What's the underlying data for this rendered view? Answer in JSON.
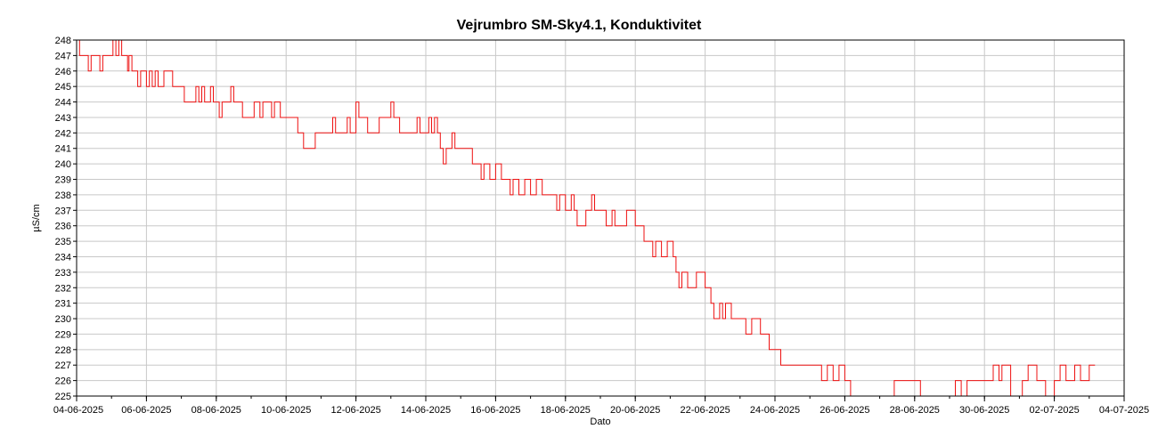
{
  "chart_data": {
    "type": "line",
    "title": "Vejrumbro SM-Sky4.1, Konduktivitet",
    "xlabel": "Dato",
    "ylabel": "µS/cm",
    "ylim": [
      225,
      248
    ],
    "xlim": [
      "2025-06-04",
      "2025-07-04"
    ],
    "grid": true,
    "legend": "none",
    "y_ticks": [
      225,
      226,
      227,
      228,
      229,
      230,
      231,
      232,
      233,
      234,
      235,
      236,
      237,
      238,
      239,
      240,
      241,
      242,
      243,
      244,
      245,
      246,
      247,
      248
    ],
    "x_ticks": [
      {
        "date": "2025-06-04",
        "label": "04-06-2025"
      },
      {
        "date": "2025-06-06",
        "label": "06-06-2025"
      },
      {
        "date": "2025-06-08",
        "label": "08-06-2025"
      },
      {
        "date": "2025-06-10",
        "label": "10-06-2025"
      },
      {
        "date": "2025-06-12",
        "label": "12-06-2025"
      },
      {
        "date": "2025-06-14",
        "label": "14-06-2025"
      },
      {
        "date": "2025-06-16",
        "label": "16-06-2025"
      },
      {
        "date": "2025-06-18",
        "label": "18-06-2025"
      },
      {
        "date": "2025-06-20",
        "label": "20-06-2025"
      },
      {
        "date": "2025-06-22",
        "label": "22-06-2025"
      },
      {
        "date": "2025-06-24",
        "label": "24-06-2025"
      },
      {
        "date": "2025-06-26",
        "label": "26-06-2025"
      },
      {
        "date": "2025-06-28",
        "label": "28-06-2025"
      },
      {
        "date": "2025-06-30",
        "label": "30-06-2025"
      },
      {
        "date": "2025-07-02",
        "label": "02-07-2025"
      },
      {
        "date": "2025-07-04",
        "label": "04-07-2025"
      }
    ],
    "series": [
      {
        "color": "#ee1111",
        "points": [
          [
            "2025-06-04 00:00",
            248
          ],
          [
            "2025-06-04 02:00",
            247
          ],
          [
            "2025-06-04 06:00",
            247
          ],
          [
            "2025-06-04 08:00",
            246
          ],
          [
            "2025-06-04 10:00",
            247
          ],
          [
            "2025-06-04 14:00",
            247
          ],
          [
            "2025-06-04 16:00",
            246
          ],
          [
            "2025-06-04 18:00",
            247
          ],
          [
            "2025-06-05 00:00",
            247
          ],
          [
            "2025-06-05 01:00",
            248
          ],
          [
            "2025-06-05 03:00",
            247
          ],
          [
            "2025-06-05 05:00",
            248
          ],
          [
            "2025-06-05 07:00",
            247
          ],
          [
            "2025-06-05 10:00",
            247
          ],
          [
            "2025-06-05 11:00",
            246
          ],
          [
            "2025-06-05 12:00",
            247
          ],
          [
            "2025-06-05 14:00",
            246
          ],
          [
            "2025-06-05 16:00",
            246
          ],
          [
            "2025-06-05 18:00",
            245
          ],
          [
            "2025-06-05 20:00",
            246
          ],
          [
            "2025-06-06 00:00",
            245
          ],
          [
            "2025-06-06 02:00",
            246
          ],
          [
            "2025-06-06 04:00",
            245
          ],
          [
            "2025-06-06 06:00",
            246
          ],
          [
            "2025-06-06 08:00",
            245
          ],
          [
            "2025-06-06 12:00",
            246
          ],
          [
            "2025-06-06 18:00",
            245
          ],
          [
            "2025-06-07 00:00",
            245
          ],
          [
            "2025-06-07 02:00",
            244
          ],
          [
            "2025-06-07 08:00",
            244
          ],
          [
            "2025-06-07 10:00",
            245
          ],
          [
            "2025-06-07 12:00",
            244
          ],
          [
            "2025-06-07 14:00",
            245
          ],
          [
            "2025-06-07 16:00",
            244
          ],
          [
            "2025-06-07 20:00",
            245
          ],
          [
            "2025-06-07 22:00",
            244
          ],
          [
            "2025-06-08 00:00",
            244
          ],
          [
            "2025-06-08 02:00",
            243
          ],
          [
            "2025-06-08 04:00",
            244
          ],
          [
            "2025-06-08 08:00",
            244
          ],
          [
            "2025-06-08 10:00",
            245
          ],
          [
            "2025-06-08 12:00",
            244
          ],
          [
            "2025-06-08 16:00",
            244
          ],
          [
            "2025-06-08 18:00",
            243
          ],
          [
            "2025-06-09 00:00",
            243
          ],
          [
            "2025-06-09 02:00",
            244
          ],
          [
            "2025-06-09 06:00",
            243
          ],
          [
            "2025-06-09 08:00",
            244
          ],
          [
            "2025-06-09 12:00",
            244
          ],
          [
            "2025-06-09 14:00",
            243
          ],
          [
            "2025-06-09 16:00",
            244
          ],
          [
            "2025-06-09 20:00",
            243
          ],
          [
            "2025-06-10 00:00",
            243
          ],
          [
            "2025-06-10 06:00",
            243
          ],
          [
            "2025-06-10 08:00",
            242
          ],
          [
            "2025-06-10 10:00",
            242
          ],
          [
            "2025-06-10 12:00",
            241
          ],
          [
            "2025-06-10 18:00",
            241
          ],
          [
            "2025-06-10 20:00",
            242
          ],
          [
            "2025-06-11 06:00",
            242
          ],
          [
            "2025-06-11 08:00",
            243
          ],
          [
            "2025-06-11 10:00",
            242
          ],
          [
            "2025-06-11 16:00",
            242
          ],
          [
            "2025-06-11 18:00",
            243
          ],
          [
            "2025-06-11 20:00",
            242
          ],
          [
            "2025-06-12 00:00",
            244
          ],
          [
            "2025-06-12 02:00",
            243
          ],
          [
            "2025-06-12 06:00",
            243
          ],
          [
            "2025-06-12 08:00",
            242
          ],
          [
            "2025-06-12 14:00",
            242
          ],
          [
            "2025-06-12 16:00",
            243
          ],
          [
            "2025-06-12 20:00",
            243
          ],
          [
            "2025-06-13 00:00",
            244
          ],
          [
            "2025-06-13 02:00",
            243
          ],
          [
            "2025-06-13 04:00",
            243
          ],
          [
            "2025-06-13 06:00",
            242
          ],
          [
            "2025-06-13 16:00",
            242
          ],
          [
            "2025-06-13 18:00",
            243
          ],
          [
            "2025-06-13 20:00",
            242
          ],
          [
            "2025-06-14 00:00",
            242
          ],
          [
            "2025-06-14 02:00",
            243
          ],
          [
            "2025-06-14 04:00",
            242
          ],
          [
            "2025-06-14 06:00",
            243
          ],
          [
            "2025-06-14 08:00",
            242
          ],
          [
            "2025-06-14 10:00",
            241
          ],
          [
            "2025-06-14 12:00",
            240
          ],
          [
            "2025-06-14 14:00",
            241
          ],
          [
            "2025-06-14 18:00",
            242
          ],
          [
            "2025-06-14 20:00",
            241
          ],
          [
            "2025-06-15 00:00",
            241
          ],
          [
            "2025-06-15 06:00",
            241
          ],
          [
            "2025-06-15 08:00",
            240
          ],
          [
            "2025-06-15 12:00",
            240
          ],
          [
            "2025-06-15 14:00",
            239
          ],
          [
            "2025-06-15 16:00",
            240
          ],
          [
            "2025-06-15 20:00",
            239
          ],
          [
            "2025-06-16 00:00",
            240
          ],
          [
            "2025-06-16 04:00",
            239
          ],
          [
            "2025-06-16 08:00",
            239
          ],
          [
            "2025-06-16 10:00",
            238
          ],
          [
            "2025-06-16 12:00",
            239
          ],
          [
            "2025-06-16 16:00",
            238
          ],
          [
            "2025-06-16 20:00",
            239
          ],
          [
            "2025-06-17 00:00",
            238
          ],
          [
            "2025-06-17 04:00",
            239
          ],
          [
            "2025-06-17 08:00",
            238
          ],
          [
            "2025-06-17 16:00",
            238
          ],
          [
            "2025-06-17 18:00",
            237
          ],
          [
            "2025-06-17 20:00",
            238
          ],
          [
            "2025-06-18 00:00",
            237
          ],
          [
            "2025-06-18 04:00",
            238
          ],
          [
            "2025-06-18 06:00",
            237
          ],
          [
            "2025-06-18 08:00",
            236
          ],
          [
            "2025-06-18 14:00",
            237
          ],
          [
            "2025-06-18 18:00",
            238
          ],
          [
            "2025-06-18 20:00",
            237
          ],
          [
            "2025-06-19 00:00",
            237
          ],
          [
            "2025-06-19 04:00",
            236
          ],
          [
            "2025-06-19 08:00",
            237
          ],
          [
            "2025-06-19 10:00",
            236
          ],
          [
            "2025-06-19 16:00",
            236
          ],
          [
            "2025-06-19 18:00",
            237
          ],
          [
            "2025-06-20 00:00",
            236
          ],
          [
            "2025-06-20 04:00",
            236
          ],
          [
            "2025-06-20 06:00",
            235
          ],
          [
            "2025-06-20 10:00",
            235
          ],
          [
            "2025-06-20 12:00",
            234
          ],
          [
            "2025-06-20 14:00",
            235
          ],
          [
            "2025-06-20 18:00",
            234
          ],
          [
            "2025-06-20 22:00",
            235
          ],
          [
            "2025-06-21 02:00",
            234
          ],
          [
            "2025-06-21 04:00",
            233
          ],
          [
            "2025-06-21 06:00",
            232
          ],
          [
            "2025-06-21 08:00",
            233
          ],
          [
            "2025-06-21 12:00",
            232
          ],
          [
            "2025-06-21 18:00",
            233
          ],
          [
            "2025-06-22 00:00",
            232
          ],
          [
            "2025-06-22 04:00",
            231
          ],
          [
            "2025-06-22 06:00",
            230
          ],
          [
            "2025-06-22 10:00",
            231
          ],
          [
            "2025-06-22 12:00",
            230
          ],
          [
            "2025-06-22 14:00",
            231
          ],
          [
            "2025-06-22 18:00",
            230
          ],
          [
            "2025-06-23 00:00",
            230
          ],
          [
            "2025-06-23 04:00",
            229
          ],
          [
            "2025-06-23 08:00",
            230
          ],
          [
            "2025-06-23 12:00",
            230
          ],
          [
            "2025-06-23 14:00",
            229
          ],
          [
            "2025-06-23 18:00",
            229
          ],
          [
            "2025-06-23 20:00",
            228
          ],
          [
            "2025-06-24 00:00",
            228
          ],
          [
            "2025-06-24 04:00",
            227
          ],
          [
            "2025-06-24 08:00",
            227
          ],
          [
            "2025-06-24 12:00",
            227
          ],
          [
            "2025-06-25 00:00",
            227
          ],
          [
            "2025-06-25 06:00",
            227
          ],
          [
            "2025-06-25 08:00",
            226
          ],
          [
            "2025-06-25 12:00",
            227
          ],
          [
            "2025-06-25 16:00",
            226
          ],
          [
            "2025-06-25 20:00",
            227
          ],
          [
            "2025-06-26 00:00",
            226
          ],
          [
            "2025-06-26 04:00",
            225
          ],
          [
            "2025-06-27 08:00",
            225
          ],
          [
            "2025-06-27 10:00",
            226
          ],
          [
            "2025-06-28 00:00",
            226
          ],
          [
            "2025-06-28 04:00",
            225
          ],
          [
            "2025-06-29 00:00",
            225
          ],
          [
            "2025-06-29 04:00",
            226
          ],
          [
            "2025-06-29 08:00",
            225
          ],
          [
            "2025-06-29 12:00",
            226
          ],
          [
            "2025-06-30 00:00",
            226
          ],
          [
            "2025-06-30 06:00",
            227
          ],
          [
            "2025-06-30 10:00",
            226
          ],
          [
            "2025-06-30 12:00",
            227
          ],
          [
            "2025-06-30 18:00",
            225
          ],
          [
            "2025-07-01 02:00",
            226
          ],
          [
            "2025-07-01 06:00",
            227
          ],
          [
            "2025-07-01 12:00",
            226
          ],
          [
            "2025-07-01 18:00",
            225
          ],
          [
            "2025-07-02 00:00",
            226
          ],
          [
            "2025-07-02 04:00",
            227
          ],
          [
            "2025-07-02 08:00",
            226
          ],
          [
            "2025-07-02 14:00",
            227
          ],
          [
            "2025-07-02 18:00",
            226
          ],
          [
            "2025-07-03 00:00",
            227
          ],
          [
            "2025-07-03 04:00",
            227
          ]
        ]
      }
    ]
  }
}
